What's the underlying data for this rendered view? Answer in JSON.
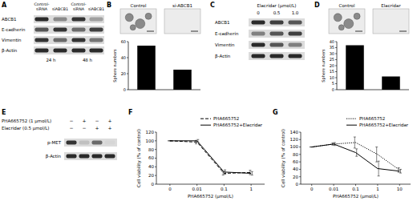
{
  "panels": {
    "A": {
      "letter": "A",
      "columns": [
        "Control-siRNA",
        "siABCB1",
        "Control-siRNA",
        "siABCB1"
      ],
      "rows": [
        {
          "label": "ABCB1",
          "bands": [
            0.9,
            0.45,
            0.85,
            0.35
          ]
        },
        {
          "label": "E-cadherin",
          "bands": [
            0.7,
            0.85,
            0.6,
            0.8
          ]
        },
        {
          "label": "Vimentin",
          "bands": [
            0.85,
            0.6,
            0.85,
            0.55
          ]
        },
        {
          "label": "β-Actin",
          "bands": [
            0.9,
            0.9,
            0.9,
            0.9
          ]
        }
      ],
      "timepoints": [
        "24 h",
        "48 h"
      ]
    },
    "B": {
      "letter": "B",
      "images": [
        "Control",
        "si-ABCB1"
      ]
    },
    "C": {
      "letter": "C",
      "treatment": "Elacridar (μmol/L)",
      "columns": [
        "0",
        "0.5",
        "1.0"
      ],
      "rows": [
        {
          "label": "ABCB1",
          "bands": [
            0.9,
            0.8,
            0.7
          ]
        },
        {
          "label": "E-cadherin",
          "bands": [
            0.5,
            0.7,
            0.8
          ]
        },
        {
          "label": "Vimentin",
          "bands": [
            0.9,
            0.7,
            0.5
          ]
        },
        {
          "label": "β-Actin",
          "bands": [
            0.9,
            0.9,
            0.9
          ]
        }
      ]
    },
    "D": {
      "letter": "D",
      "images": [
        "Control",
        "Elacridar"
      ]
    },
    "E": {
      "letter": "E",
      "treatments": [
        {
          "label": "PHA665752 (1 μmol/L)",
          "signs": [
            "−",
            "+",
            "−",
            "+"
          ]
        },
        {
          "label": "Elacridar (0.5 μmol/L)",
          "signs": [
            "−",
            "−",
            "+",
            "+"
          ]
        }
      ],
      "rows": [
        {
          "label": "p-MET",
          "bands": [
            0.85,
            0.2,
            0.6,
            0.1
          ]
        },
        {
          "label": "β-Actin",
          "bands": [
            0.9,
            0.9,
            0.9,
            0.9
          ]
        }
      ]
    },
    "F": {
      "letter": "F"
    },
    "G": {
      "letter": "G"
    }
  },
  "chart_data": [
    {
      "type": "bar",
      "categories": [
        null,
        null
      ],
      "values": [
        55,
        25
      ],
      "color": "#000000",
      "ylabel": "Sphere numbers",
      "ylim": [
        0,
        60
      ],
      "yticks": [
        0,
        20,
        40,
        60
      ]
    },
    {
      "type": "bar",
      "categories": [
        null,
        null
      ],
      "values": [
        37,
        11
      ],
      "color": "#000000",
      "ylabel": "Sphere numbers",
      "ylim": [
        0,
        40
      ],
      "yticks": [
        0,
        5,
        10,
        15,
        20,
        25,
        30,
        35,
        40
      ]
    },
    {
      "type": "line",
      "categories": [
        "0",
        "0.01",
        "0.1",
        "1"
      ],
      "xlabel": "PHA665752 (μmol/L)",
      "ylabel": "Cell viability (% of control)",
      "ylim": [
        0,
        120
      ],
      "yticks": [
        0,
        20,
        40,
        60,
        80,
        100,
        120
      ],
      "legend": "upper right",
      "series": [
        {
          "name": "PHA665752",
          "color": "#000000",
          "line_style": "dashed",
          "values": [
            100,
            97,
            25,
            27
          ],
          "errors": [
            0,
            4,
            4,
            5
          ]
        },
        {
          "name": "PHA665752+Elacridar",
          "color": "#000000",
          "line_style": "solid",
          "values": [
            100,
            100,
            28,
            25
          ],
          "errors": [
            0,
            3,
            5,
            4
          ]
        }
      ]
    },
    {
      "type": "line",
      "categories": [
        "0",
        "0.01",
        "0.1",
        "1",
        "10"
      ],
      "xlabel": "PHA665752 (μmol/L)",
      "ylabel": "Cell viability (% of control)",
      "ylim": [
        0,
        140
      ],
      "yticks": [
        0,
        20,
        40,
        60,
        80,
        100,
        120,
        140
      ],
      "legend": "upper right",
      "series": [
        {
          "name": "PHA665752",
          "color": "#000000",
          "line_style": "dotted",
          "values": [
            100,
            108,
            112,
            80,
            38
          ],
          "errors": [
            0,
            3,
            15,
            20,
            6
          ]
        },
        {
          "name": "PHA665752+Elacridar",
          "color": "#000000",
          "line_style": "solid",
          "values": [
            100,
            108,
            85,
            42,
            35
          ],
          "errors": [
            0,
            4,
            10,
            20,
            5
          ]
        }
      ]
    }
  ]
}
